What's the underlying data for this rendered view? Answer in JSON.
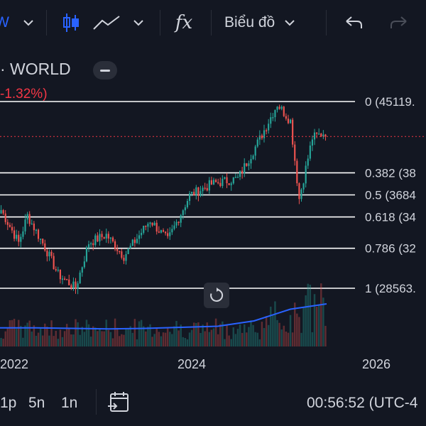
{
  "toolbar": {
    "interval_label": "W",
    "chart_type_icon": "candles-icon",
    "drawing_icon": "line-drawing-icon",
    "indicators_label": "fx",
    "chart_menu_label": "Biểu đồ",
    "undo_icon": "undo-icon",
    "redo_icon": "redo-icon"
  },
  "legend": {
    "symbol_suffix": "· WORLD",
    "change": "-1.32%)"
  },
  "fib_levels": [
    {
      "ratio": 0,
      "label": "0 (45119."
    },
    {
      "ratio": 0.382,
      "label": "0.382 (38"
    },
    {
      "ratio": 0.5,
      "label": "0.5 (3684"
    },
    {
      "ratio": 0.618,
      "label": "0.618 (34"
    },
    {
      "ratio": 0.786,
      "label": "0.786 (32"
    },
    {
      "ratio": 1,
      "label": "1 (28563."
    }
  ],
  "time_axis": [
    "2022",
    "2024",
    "2026"
  ],
  "bottom": {
    "ranges": [
      "1p",
      "5n",
      "1n"
    ],
    "clock": "00:56:52 (UTC-4"
  },
  "colors": {
    "up": "#26a69a",
    "down": "#ef5350",
    "volume_ma": "#2962ff",
    "price_line": "#f23645"
  },
  "chart_data": {
    "type": "candlestick",
    "y_range": [
      28563,
      45119
    ],
    "price_anchors": [
      [
        0,
        35500
      ],
      [
        8,
        32600
      ],
      [
        12,
        35000
      ],
      [
        20,
        32200
      ],
      [
        26,
        29800
      ],
      [
        34,
        28563
      ],
      [
        40,
        32600
      ],
      [
        48,
        33300
      ],
      [
        56,
        31400
      ],
      [
        68,
        34600
      ],
      [
        76,
        32800
      ],
      [
        86,
        36800
      ],
      [
        96,
        37800
      ],
      [
        108,
        38300
      ],
      [
        118,
        41800
      ],
      [
        126,
        44900
      ],
      [
        132,
        43400
      ],
      [
        136,
        36500
      ],
      [
        142,
        41900
      ],
      [
        148,
        42400
      ]
    ],
    "volume_ma": [
      0.35,
      0.35,
      0.34,
      0.33,
      0.34,
      0.36,
      0.38,
      0.48,
      0.7,
      0.8
    ]
  }
}
